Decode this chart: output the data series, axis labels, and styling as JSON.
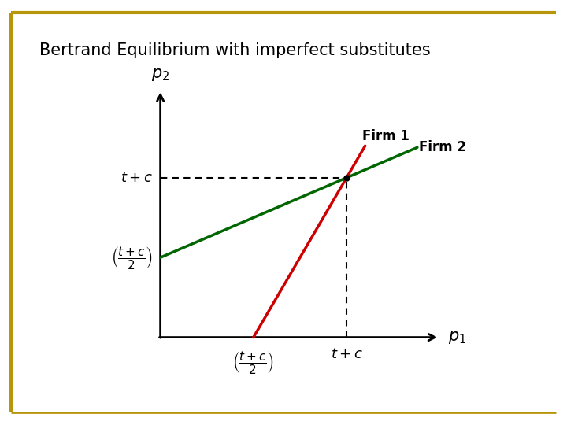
{
  "title": "Bertrand Equilibrium with imperfect substitutes",
  "title_fontsize": 15,
  "background_color": "#ffffff",
  "border_color": "#b8960c",
  "firm1_color": "#cc0000",
  "firm2_color": "#006600",
  "firm1_label": "Firm 1",
  "firm2_label": "Firm 2",
  "xlabel": "$p_1$",
  "ylabel": "$p_2$",
  "label_tc_y": "$t+c$",
  "label_tc2_y": "$\\left(\\dfrac{t+c}{2}\\right)$",
  "label_tc2_x": "$\\left(\\dfrac{t+c}{2}\\right)$",
  "label_tc_x": "$t+c$",
  "tc_val": 6,
  "tc2_val": 3
}
